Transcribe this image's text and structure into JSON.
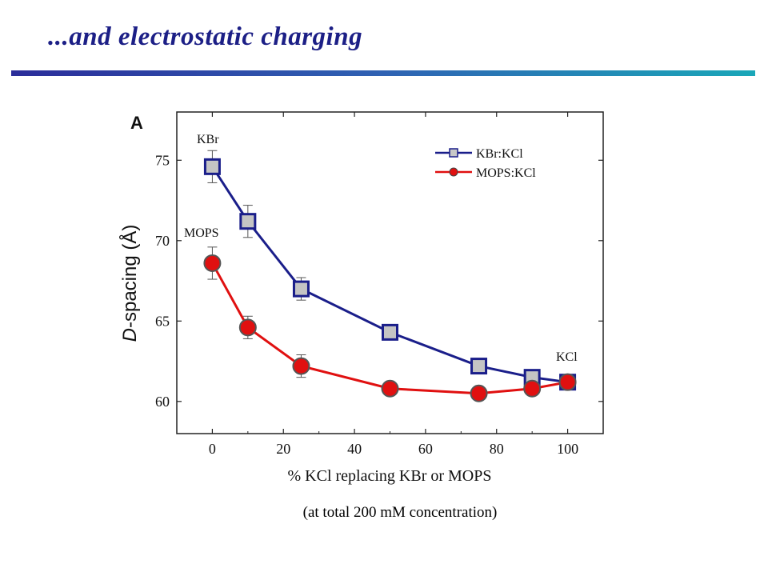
{
  "slide": {
    "title": "...and electrostatic charging",
    "caption": "(at total 200 mM concentration)"
  },
  "colors": {
    "title": "#1c1f86",
    "kbr_series": "#1a1e8a",
    "mops_series": "#e01010"
  },
  "chart_data": {
    "type": "line",
    "panel_label": "A",
    "xlabel": "% KCl replacing KBr or MOPS",
    "ylabel": "D-spacing (Å)",
    "xlim": [
      -10,
      110
    ],
    "ylim": [
      58,
      78
    ],
    "xticks": [
      0,
      20,
      40,
      60,
      80,
      100
    ],
    "yticks": [
      60,
      65,
      70,
      75
    ],
    "legend_position": "top-right",
    "annotations": [
      "KBr",
      "MOPS",
      "KCl"
    ],
    "series": [
      {
        "name": "KBr:KCl",
        "marker": "square",
        "x": [
          0,
          10,
          25,
          50,
          75,
          90,
          100
        ],
        "y": [
          74.6,
          71.2,
          67.0,
          64.3,
          62.2,
          61.5,
          61.2
        ],
        "yerr": [
          1.0,
          1.0,
          0.7,
          0,
          0,
          0,
          0
        ]
      },
      {
        "name": "MOPS:KCl",
        "marker": "circle",
        "x": [
          0,
          10,
          25,
          50,
          75,
          90,
          100
        ],
        "y": [
          68.6,
          64.6,
          62.2,
          60.8,
          60.5,
          60.8,
          61.2
        ],
        "yerr": [
          1.0,
          0.7,
          0.7,
          0,
          0,
          0,
          0
        ]
      }
    ]
  }
}
